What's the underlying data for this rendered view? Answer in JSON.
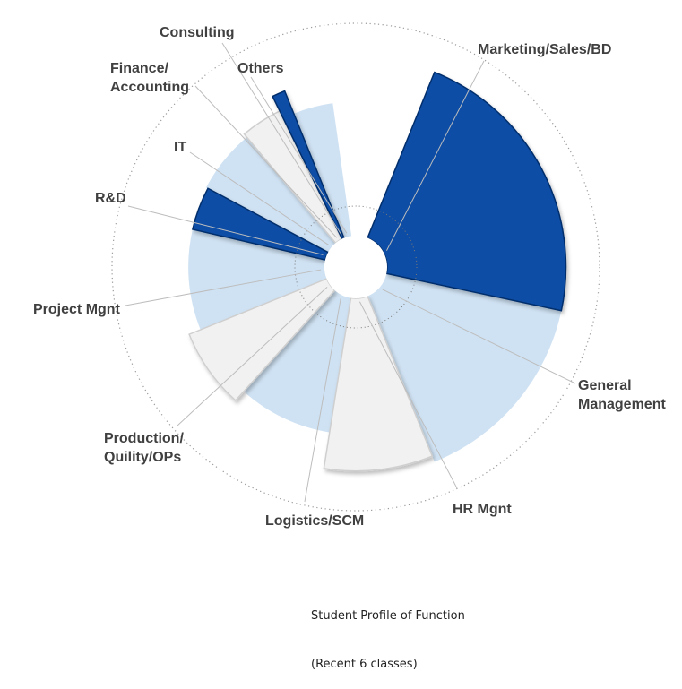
{
  "chart_data": {
    "type": "polar-area",
    "title": "Student Profile of Function",
    "subtitle": "(Recent 6 classes)",
    "segments": [
      {
        "label": "Marketing/Sales/BD",
        "radius": 0.88,
        "color_role": "dark"
      },
      {
        "label": "General\nManagement",
        "radius": 0.88,
        "color_role": "light"
      },
      {
        "label": "HR Mgnt",
        "radius": 0.85,
        "color_role": "white"
      },
      {
        "label": "Logistics/SCM",
        "radius": 0.67,
        "color_role": "light"
      },
      {
        "label": "Production/\nQuility/OPs",
        "radius": 0.73,
        "color_role": "white"
      },
      {
        "label": "Project Mgnt",
        "radius": 0.67,
        "color_role": "light"
      },
      {
        "label": "R&D",
        "radius": 0.67,
        "color_role": "dark"
      },
      {
        "label": "IT",
        "radius": 0.68,
        "color_role": "light"
      },
      {
        "label": "Finance/\nAccounting",
        "radius": 0.7,
        "color_role": "white"
      },
      {
        "label": "Consulting",
        "radius": 0.78,
        "color_role": "dark"
      },
      {
        "label": "Others",
        "radius": 0.66,
        "color_role": "light"
      }
    ]
  },
  "colors": {
    "dark": "#0a4ea5",
    "dark_edge": "#062f6c",
    "light": "#cfe2f3",
    "white": "#f1f1f1",
    "white_edge": "#cfcfcf",
    "leader": "#bdbdbd",
    "ring": "#9a9a9a",
    "text": "#404040"
  }
}
